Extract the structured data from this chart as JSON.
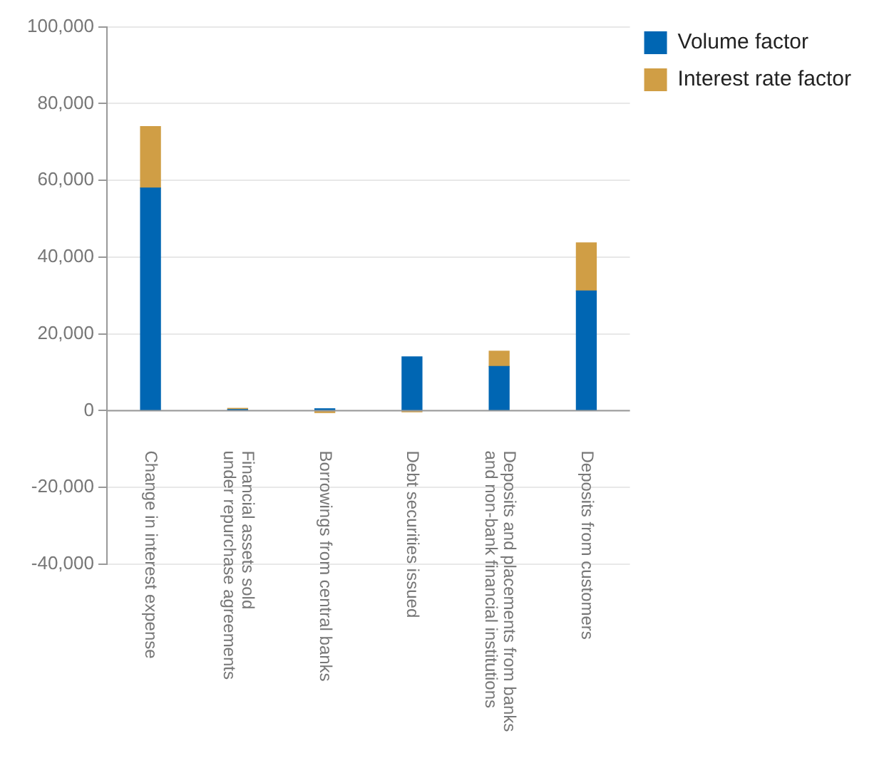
{
  "chart_data": {
    "type": "bar",
    "stacked": true,
    "categories": [
      "Change in interest expense",
      "Financial assets sold\nunder repurchase agreements",
      "Borrowings from central banks",
      "Debt securities issued",
      "Deposits and placements from banks\nand non-bank financial institutions",
      "Deposits from customers"
    ],
    "series": [
      {
        "name": "Volume factor",
        "color": "#0066b3",
        "values": [
          58000,
          300,
          500,
          14000,
          11500,
          31200
        ]
      },
      {
        "name": "Interest rate factor",
        "color": "#d09e45",
        "values": [
          16000,
          300,
          -500,
          -300,
          4000,
          12500
        ]
      }
    ],
    "ylim": [
      -40000,
      100000
    ],
    "yticks": [
      {
        "value": -40000,
        "label": "-40,000"
      },
      {
        "value": -20000,
        "label": "-20,000"
      },
      0,
      {
        "value": 20000,
        "label": "20,000"
      },
      {
        "value": 40000,
        "label": "40,000"
      },
      {
        "value": 60000,
        "label": "60,000"
      },
      {
        "value": 80000,
        "label": "80,000"
      },
      {
        "value": 100000,
        "label": "100,000"
      }
    ],
    "grid": "y",
    "legend": "top right"
  }
}
